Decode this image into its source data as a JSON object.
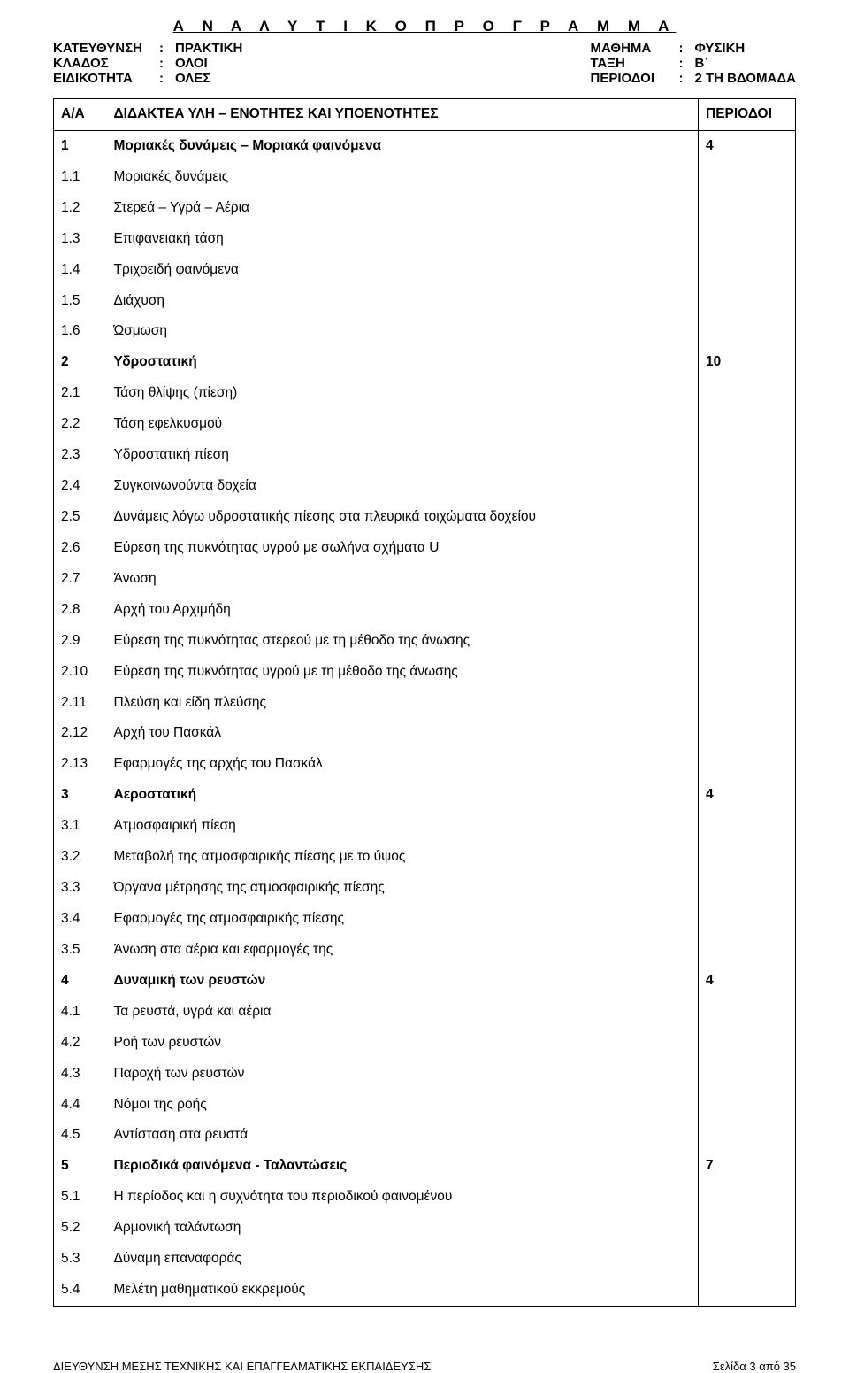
{
  "title": "Α Ν Α Λ Υ Τ Ι Κ Ο   Π Ρ Ο Γ Ρ Α Μ Μ Α",
  "meta": {
    "left": [
      {
        "label": "ΚΑΤΕΥΘΥΝΣΗ",
        "value": "ΠΡΑΚΤΙΚΗ"
      },
      {
        "label": "ΚΛΑΔΟΣ",
        "value": "ΟΛΟΙ"
      },
      {
        "label": "ΕΙΔΙΚΟΤΗΤΑ",
        "value": "ΟΛΕΣ"
      }
    ],
    "right": [
      {
        "label": "ΜΑΘΗΜΑ",
        "value": "ΦΥΣΙΚΗ"
      },
      {
        "label": "ΤΑΞΗ",
        "value": "Β΄"
      },
      {
        "label": "ΠΕΡΙΟΔΟΙ",
        "value": "2 ΤΗ ΒΔΟΜΑΔΑ"
      }
    ]
  },
  "columns": {
    "aa": "Α/Α",
    "topic": "ΔΙΔΑΚΤΕΑ ΥΛΗ – ΕΝΟΤΗΤΕΣ ΚΑΙ ΥΠΟΕΝΟΤΗΤΕΣ",
    "periods": "ΠΕΡΙΟΔΟΙ"
  },
  "rows": [
    {
      "aa": "1",
      "topic": "Μοριακές δυνάμεις – Μοριακά φαινόμενα",
      "periods": "4",
      "bold": true
    },
    {
      "aa": "1.1",
      "topic": "Μοριακές δυνάμεις"
    },
    {
      "aa": "1.2",
      "topic": "Στερεά – Υγρά – Αέρια"
    },
    {
      "aa": "1.3",
      "topic": "Επιφανειακή τάση"
    },
    {
      "aa": "1.4",
      "topic": "Τριχοειδή φαινόμενα"
    },
    {
      "aa": "1.5",
      "topic": "Διάχυση"
    },
    {
      "aa": "1.6",
      "topic": "Ώσμωση"
    },
    {
      "aa": "2",
      "topic": "Υδροστατική",
      "periods": "10",
      "bold": true
    },
    {
      "aa": "2.1",
      "topic": "Τάση θλίψης (πίεση)"
    },
    {
      "aa": "2.2",
      "topic": "Τάση εφελκυσμού"
    },
    {
      "aa": "2.3",
      "topic": "Υδροστατική πίεση"
    },
    {
      "aa": "2.4",
      "topic": "Συγκοινωνούντα δοχεία"
    },
    {
      "aa": "2.5",
      "topic": "Δυνάμεις λόγω υδροστατικής πίεσης στα πλευρικά τοιχώματα δοχείου"
    },
    {
      "aa": "2.6",
      "topic": "Εύρεση της πυκνότητας υγρού με σωλήνα σχήματα U"
    },
    {
      "aa": "2.7",
      "topic": "Άνωση"
    },
    {
      "aa": "2.8",
      "topic": "Αρχή του Αρχιμήδη"
    },
    {
      "aa": "2.9",
      "topic": "Εύρεση της πυκνότητας στερεού με τη μέθοδο της άνωσης"
    },
    {
      "aa": "2.10",
      "topic": "Εύρεση της πυκνότητας υγρού με τη μέθοδο της άνωσης"
    },
    {
      "aa": "2.11",
      "topic": "Πλεύση και είδη πλεύσης"
    },
    {
      "aa": "2.12",
      "topic": "Αρχή του Πασκάλ"
    },
    {
      "aa": "2.13",
      "topic": "Εφαρμογές της αρχής του Πασκάλ"
    },
    {
      "aa": "3",
      "topic": "Αεροστατική",
      "periods": "4",
      "bold": true
    },
    {
      "aa": "3.1",
      "topic": "Ατμοσφαιρική πίεση"
    },
    {
      "aa": "3.2",
      "topic": "Μεταβολή της ατμοσφαιρικής πίεσης με το ύψος"
    },
    {
      "aa": "3.3",
      "topic": "Όργανα μέτρησης της ατμοσφαιρικής πίεσης"
    },
    {
      "aa": "3.4",
      "topic": "Εφαρμογές της ατμοσφαιρικής πίεσης"
    },
    {
      "aa": "3.5",
      "topic": "Άνωση στα αέρια και εφαρμογές της"
    },
    {
      "aa": "4",
      "topic": "Δυναμική των ρευστών",
      "periods": "4",
      "bold": true
    },
    {
      "aa": "4.1",
      "topic": "Τα ρευστά, υγρά και αέρια"
    },
    {
      "aa": "4.2",
      "topic": "Ροή των ρευστών"
    },
    {
      "aa": "4.3",
      "topic": "Παροχή των ρευστών"
    },
    {
      "aa": "4.4",
      "topic": "Νόμοι της ροής"
    },
    {
      "aa": "4.5",
      "topic": "Αντίσταση στα ρευστά"
    },
    {
      "aa": "5",
      "topic": "Περιοδικά φαινόμενα - Ταλαντώσεις",
      "periods": "7",
      "bold": true
    },
    {
      "aa": "5.1",
      "topic": "Η περίοδος και η συχνότητα του περιοδικού φαινομένου"
    },
    {
      "aa": "5.2",
      "topic": "Αρμονική ταλάντωση"
    },
    {
      "aa": "5.3",
      "topic": "Δύναμη επαναφοράς"
    },
    {
      "aa": "5.4",
      "topic": "Μελέτη μαθηματικού εκκρεμούς"
    }
  ],
  "footer": {
    "left": "ΔΙΕΥΘΥΝΣΗ ΜΕΣΗΣ ΤΕΧΝΙΚΗΣ ΚΑΙ ΕΠΑΓΓΕΛΜΑΤΙΚΗΣ ΕΚΠΑΙΔΕΥΣΗΣ",
    "right": "Σελίδα 3 από 35"
  }
}
